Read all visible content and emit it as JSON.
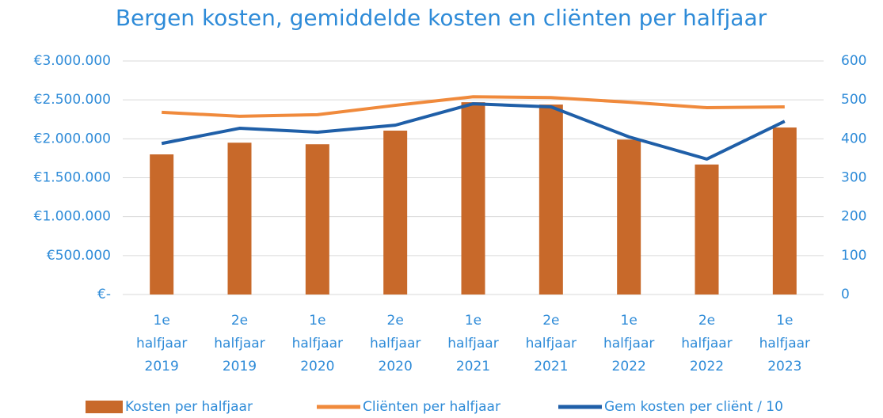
{
  "chart_data": {
    "type": "bar",
    "title": "Bergen kosten, gemiddelde kosten en cliënten per halfjaar",
    "categories": [
      "1e halfjaar 2019",
      "2e halfjaar 2019",
      "1e halfjaar 2020",
      "2e halfjaar 2020",
      "1e halfjaar 2021",
      "2e halfjaar 2021",
      "1e halfjaar 2022",
      "2e halfjaar 2022",
      "1e halfjaar 2023"
    ],
    "series": [
      {
        "name": "Kosten per halfjaar",
        "type": "bar",
        "axis": "y",
        "color": "#c8692a",
        "values": [
          1800000,
          1950000,
          1930000,
          2105000,
          2470000,
          2440000,
          1990000,
          1670000,
          2145000
        ]
      },
      {
        "name": "Cliënten per halfjaar",
        "type": "line",
        "axis": "y2",
        "color": "#f08a3c",
        "values": [
          468,
          458,
          462,
          486,
          508,
          506,
          494,
          480,
          482
        ]
      },
      {
        "name": "Gem kosten per cliënt / 10",
        "type": "line",
        "axis": "y2",
        "color": "#1f5fa8",
        "values": [
          388,
          427,
          417,
          435,
          490,
          482,
          405,
          348,
          445
        ]
      }
    ],
    "ylim": [
      0,
      3000000
    ],
    "yticks": [
      {
        "value": 0,
        "label": "€-"
      },
      {
        "value": 500000,
        "label": "€500.000"
      },
      {
        "value": 1000000,
        "label": "€1.000.000"
      },
      {
        "value": 1500000,
        "label": "€1.500.000"
      },
      {
        "value": 2000000,
        "label": "€2.000.000"
      },
      {
        "value": 2500000,
        "label": "€2.500.000"
      },
      {
        "value": 3000000,
        "label": "€3.000.000"
      }
    ],
    "y2lim": [
      0,
      600
    ],
    "y2ticks": [
      0,
      100,
      200,
      300,
      400,
      500,
      600
    ],
    "grid": true,
    "legend": "bottom"
  }
}
